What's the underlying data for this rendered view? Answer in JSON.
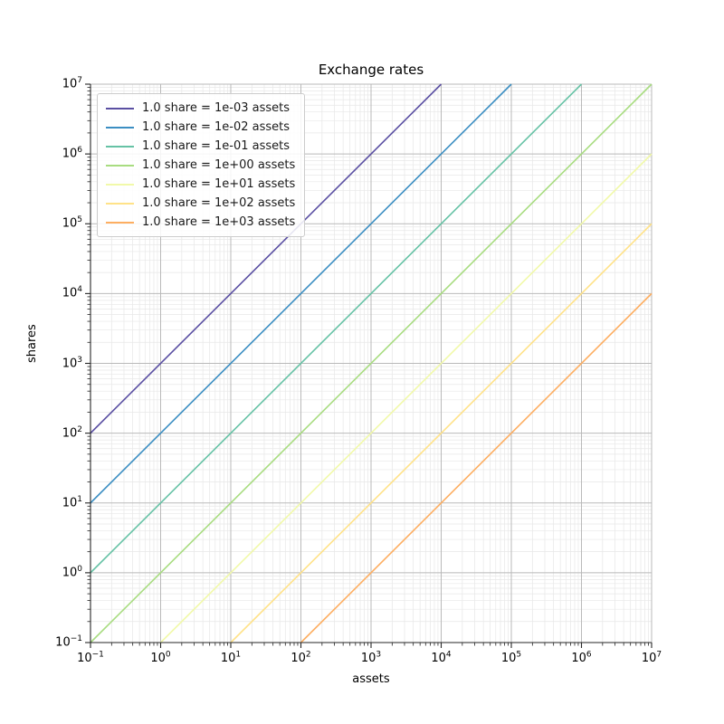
{
  "chart_data": {
    "type": "line",
    "title": "Exchange rates",
    "xlabel": "assets",
    "ylabel": "shares",
    "xscale": "log",
    "yscale": "log",
    "xlim": [
      0.1,
      10000000
    ],
    "ylim": [
      0.1,
      10000000
    ],
    "xtick_exponents": [
      -1,
      0,
      1,
      2,
      3,
      4,
      5,
      6,
      7
    ],
    "ytick_exponents": [
      -1,
      0,
      1,
      2,
      3,
      4,
      5,
      6,
      7
    ],
    "grid": {
      "major": true,
      "minor": true
    },
    "legend_position": "upper left",
    "series": [
      {
        "name": "1.0 share = 1e-03 assets",
        "assets_per_share": 0.001,
        "color": "#5a4fa2",
        "endpoints": [
          [
            0.1,
            100
          ],
          [
            10000,
            10000000
          ]
        ]
      },
      {
        "name": "1.0 share = 1e-02 assets",
        "assets_per_share": 0.01,
        "color": "#3b8ec2",
        "endpoints": [
          [
            0.1,
            10
          ],
          [
            100000,
            10000000
          ]
        ]
      },
      {
        "name": "1.0 share = 1e-01 assets",
        "assets_per_share": 0.1,
        "color": "#66c2a5",
        "endpoints": [
          [
            0.1,
            1
          ],
          [
            1000000,
            10000000
          ]
        ]
      },
      {
        "name": "1.0 share = 1e+00 assets",
        "assets_per_share": 1,
        "color": "#a8dc80",
        "endpoints": [
          [
            0.1,
            0.1
          ],
          [
            10000000,
            10000000
          ]
        ]
      },
      {
        "name": "1.0 share = 1e+01 assets",
        "assets_per_share": 10,
        "color": "#f1f9a9",
        "endpoints": [
          [
            1,
            0.1
          ],
          [
            10000000,
            1000000
          ]
        ]
      },
      {
        "name": "1.0 share = 1e+02 assets",
        "assets_per_share": 100,
        "color": "#ffe288",
        "endpoints": [
          [
            10,
            0.1
          ],
          [
            10000000,
            100000
          ]
        ]
      },
      {
        "name": "1.0 share = 1e+03 assets",
        "assets_per_share": 1000,
        "color": "#fdae61",
        "endpoints": [
          [
            100,
            0.1
          ],
          [
            10000000,
            10000
          ]
        ]
      }
    ],
    "colors": {
      "background": "#ffffff",
      "text": "#000000",
      "grid_major": "#b9b9b9",
      "grid_minor": "#e7e7e7",
      "spine": "#262626",
      "legend_border": "#cccccc"
    }
  }
}
